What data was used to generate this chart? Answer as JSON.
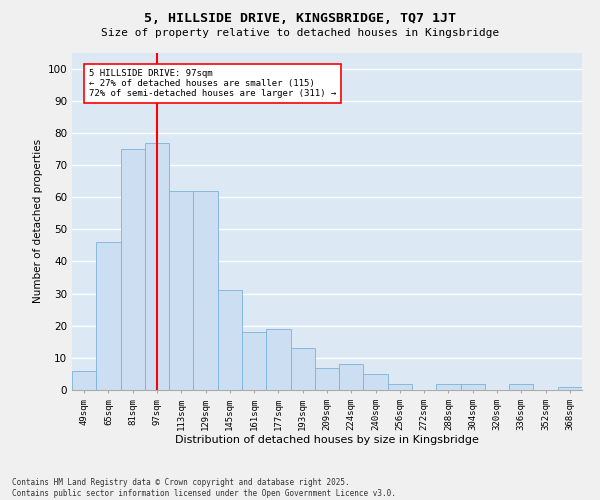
{
  "title_line1": "5, HILLSIDE DRIVE, KINGSBRIDGE, TQ7 1JT",
  "title_line2": "Size of property relative to detached houses in Kingsbridge",
  "xlabel": "Distribution of detached houses by size in Kingsbridge",
  "ylabel": "Number of detached properties",
  "bar_color": "#ccdff2",
  "bar_edge_color": "#7ab3d9",
  "background_color": "#dce9f5",
  "grid_color": "#ffffff",
  "annotation_box_text": "5 HILLSIDE DRIVE: 97sqm\n← 27% of detached houses are smaller (115)\n72% of semi-detached houses are larger (311) →",
  "red_line_index": 3,
  "categories": [
    "49sqm",
    "65sqm",
    "81sqm",
    "97sqm",
    "113sqm",
    "129sqm",
    "145sqm",
    "161sqm",
    "177sqm",
    "193sqm",
    "209sqm",
    "224sqm",
    "240sqm",
    "256sqm",
    "272sqm",
    "288sqm",
    "304sqm",
    "320sqm",
    "336sqm",
    "352sqm",
    "368sqm"
  ],
  "values": [
    6,
    46,
    75,
    77,
    62,
    62,
    31,
    18,
    19,
    13,
    7,
    8,
    5,
    2,
    0,
    2,
    2,
    0,
    2,
    0,
    1
  ],
  "ylim": [
    0,
    105
  ],
  "yticks": [
    0,
    10,
    20,
    30,
    40,
    50,
    60,
    70,
    80,
    90,
    100
  ],
  "fig_width": 6.0,
  "fig_height": 5.0,
  "dpi": 100,
  "footnote": "Contains HM Land Registry data © Crown copyright and database right 2025.\nContains public sector information licensed under the Open Government Licence v3.0."
}
